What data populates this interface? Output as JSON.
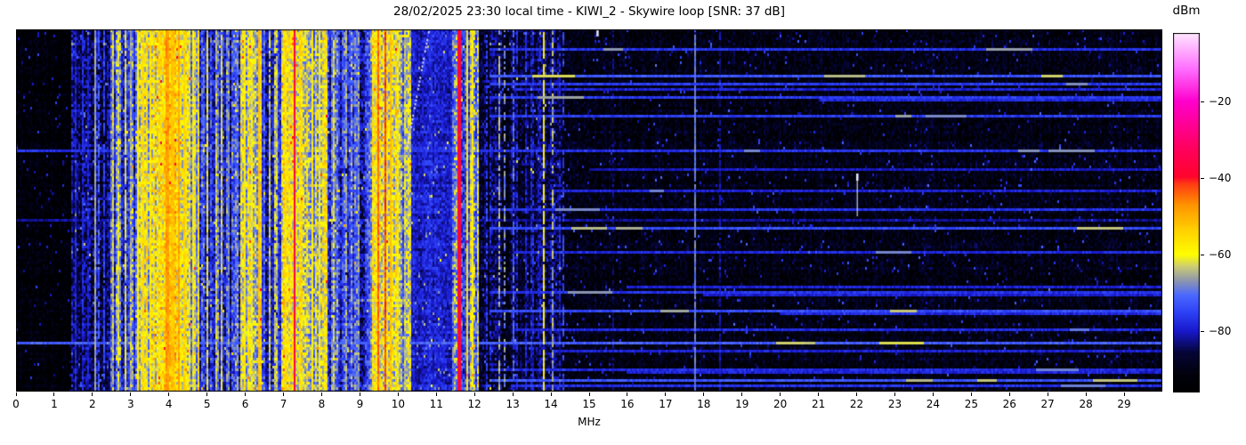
{
  "chart_data": {
    "type": "heatmap",
    "subtype": "radio-spectrogram-waterfall",
    "title": "28/02/2025 23:30 local time - KIWI_2 - Skywire loop [SNR: 37 dB]",
    "station": "KIWI_2",
    "antenna": "Skywire loop",
    "snr_db": 37,
    "timestamp_local": "28/02/2025 23:30",
    "xlabel": "MHz",
    "x_range": [
      0,
      30
    ],
    "x_ticks": [
      0,
      1,
      2,
      3,
      4,
      5,
      6,
      7,
      8,
      9,
      10,
      11,
      12,
      13,
      14,
      15,
      16,
      17,
      18,
      19,
      20,
      21,
      22,
      23,
      24,
      25,
      26,
      27,
      28,
      29
    ],
    "colorbar_label": "dBm",
    "color_range": [
      -96,
      -2
    ],
    "colorbar_ticks": [
      {
        "value": -20,
        "label": "−20"
      },
      {
        "value": -40,
        "label": "−40"
      },
      {
        "value": -60,
        "label": "−60"
      },
      {
        "value": -80,
        "label": "−80"
      }
    ],
    "colormap_stops": [
      [
        0.0,
        0,
        0,
        0
      ],
      [
        0.05,
        2,
        2,
        14
      ],
      [
        0.11,
        5,
        5,
        55
      ],
      [
        0.17,
        25,
        25,
        205
      ],
      [
        0.22,
        45,
        65,
        245
      ],
      [
        0.27,
        75,
        105,
        255
      ],
      [
        0.31,
        140,
        150,
        175
      ],
      [
        0.35,
        205,
        205,
        115
      ],
      [
        0.383,
        255,
        255,
        0
      ],
      [
        0.45,
        255,
        210,
        0
      ],
      [
        0.52,
        255,
        150,
        0
      ],
      [
        0.58,
        255,
        60,
        20
      ],
      [
        0.6,
        255,
        5,
        45
      ],
      [
        0.68,
        255,
        0,
        95
      ],
      [
        0.81,
        255,
        0,
        205
      ],
      [
        0.9,
        255,
        110,
        255
      ],
      [
        1.0,
        255,
        230,
        255
      ]
    ],
    "bands": [
      [
        0.0,
        1.45,
        -93,
        2,
        4
      ],
      [
        1.45,
        2.45,
        -84,
        5,
        6
      ],
      [
        2.45,
        3.15,
        -74,
        10,
        7
      ],
      [
        3.15,
        3.7,
        -62,
        9,
        7
      ],
      [
        3.7,
        4.45,
        -57,
        8,
        7
      ],
      [
        4.45,
        4.8,
        -65,
        9,
        7
      ],
      [
        4.8,
        5.85,
        -76,
        10,
        7
      ],
      [
        5.85,
        6.45,
        -62,
        8,
        7
      ],
      [
        6.45,
        6.95,
        -78,
        8,
        6
      ],
      [
        6.95,
        7.6,
        -60,
        8,
        7
      ],
      [
        7.6,
        8.15,
        -63,
        9,
        7
      ],
      [
        8.15,
        9.3,
        -76,
        10,
        7
      ],
      [
        9.3,
        10.1,
        -61,
        8,
        7
      ],
      [
        10.1,
        10.35,
        -68,
        9,
        7
      ],
      [
        10.35,
        11.4,
        -79,
        2.5,
        4
      ],
      [
        11.4,
        12.1,
        -68,
        11,
        8
      ],
      [
        12.1,
        12.55,
        -86,
        5,
        6
      ],
      [
        12.55,
        14.25,
        -86,
        7,
        6
      ],
      [
        14.25,
        30.0,
        -91,
        2.5,
        5
      ]
    ],
    "stripes": [
      [
        1.55,
        0.03,
        -79,
        3,
        0.9
      ],
      [
        1.72,
        0.03,
        -78,
        3,
        0.9
      ],
      [
        1.88,
        0.03,
        -79,
        3,
        0.9
      ],
      [
        2.05,
        0.025,
        -66,
        2,
        1.0
      ],
      [
        2.18,
        0.03,
        -72,
        4,
        0.7
      ],
      [
        2.32,
        0.04,
        -75,
        4,
        0.8
      ],
      [
        2.52,
        0.05,
        -63,
        4,
        0.9
      ],
      [
        2.68,
        0.04,
        -62,
        4,
        0.9
      ],
      [
        2.85,
        0.05,
        -61,
        4,
        0.9
      ],
      [
        3.0,
        0.04,
        -64,
        4,
        0.9
      ],
      [
        3.21,
        0.05,
        -58,
        3,
        1.0
      ],
      [
        3.35,
        0.05,
        -55,
        3,
        1.0
      ],
      [
        3.52,
        0.04,
        -57,
        3,
        1.0
      ],
      [
        3.95,
        0.09,
        -48,
        3,
        1.0
      ],
      [
        4.1,
        0.05,
        -52,
        3,
        1.0
      ],
      [
        4.25,
        0.06,
        -49,
        3,
        1.0
      ],
      [
        4.42,
        0.05,
        -54,
        3,
        1.0
      ],
      [
        4.62,
        0.04,
        -60,
        4,
        1.0
      ],
      [
        5.02,
        0.05,
        -62,
        4,
        0.95
      ],
      [
        5.22,
        0.04,
        -64,
        4,
        0.9
      ],
      [
        5.4,
        0.04,
        -63,
        4,
        0.9
      ],
      [
        5.58,
        0.03,
        -68,
        4,
        0.9
      ],
      [
        6.0,
        0.05,
        -58,
        4,
        1.0
      ],
      [
        6.18,
        0.04,
        -60,
        4,
        1.0
      ],
      [
        6.38,
        0.05,
        -52,
        3,
        1.0
      ],
      [
        6.62,
        0.04,
        -64,
        4,
        0.9
      ],
      [
        6.8,
        0.05,
        -63,
        4,
        0.9
      ],
      [
        7.05,
        0.05,
        -56,
        4,
        1.0
      ],
      [
        7.28,
        0.07,
        -37,
        3,
        1.0
      ],
      [
        7.45,
        0.04,
        -55,
        4,
        1.0
      ],
      [
        7.75,
        0.04,
        -58,
        4,
        1.0
      ],
      [
        7.95,
        0.05,
        -59,
        4,
        1.0
      ],
      [
        8.33,
        0.05,
        -63,
        4,
        0.9
      ],
      [
        8.62,
        0.04,
        -66,
        4,
        0.85
      ],
      [
        8.97,
        0.04,
        -67,
        4,
        0.8
      ],
      [
        9.48,
        0.05,
        -44,
        3,
        1.0
      ],
      [
        9.65,
        0.05,
        -42,
        3,
        1.0
      ],
      [
        9.82,
        0.04,
        -52,
        3,
        1.0
      ],
      [
        10.0,
        0.05,
        -60,
        4,
        0.95
      ],
      [
        10.17,
        0.04,
        -63,
        4,
        0.9
      ],
      [
        11.6,
        0.055,
        -38,
        2,
        1.0
      ],
      [
        11.8,
        0.05,
        -57,
        4,
        0.95
      ],
      [
        11.95,
        0.06,
        -59,
        4,
        0.95
      ],
      [
        12.3,
        0.03,
        -76,
        4,
        0.6
      ],
      [
        12.65,
        0.04,
        -66,
        4,
        0.65
      ],
      [
        12.78,
        0.04,
        -68,
        4,
        0.6
      ],
      [
        13.0,
        0.03,
        -71,
        4,
        0.55
      ],
      [
        13.35,
        0.03,
        -78,
        4,
        0.5
      ],
      [
        13.8,
        0.05,
        -59,
        3,
        0.85
      ],
      [
        14.05,
        0.04,
        -66,
        4,
        0.6
      ],
      [
        14.3,
        0.04,
        -75,
        4,
        0.55
      ],
      [
        15.62,
        0.03,
        -85,
        4,
        0.6
      ],
      [
        17.75,
        0.03,
        -69,
        2,
        0.95
      ],
      [
        18.4,
        0.03,
        -82,
        3,
        0.8
      ],
      [
        21.05,
        0.03,
        -86,
        3,
        0.7
      ]
    ],
    "streaks": [
      [
        0.049,
        12.4,
        30,
        -77,
        2
      ],
      [
        0.128,
        12.4,
        30,
        -73,
        3
      ],
      [
        0.145,
        12.4,
        30,
        -76,
        1
      ],
      [
        0.16,
        13.0,
        30,
        -79,
        0
      ],
      [
        0.184,
        12.4,
        30,
        -76,
        1
      ],
      [
        0.194,
        21.0,
        30,
        -78,
        0
      ],
      [
        0.238,
        12.4,
        30,
        -76,
        2
      ],
      [
        0.329,
        0.0,
        30,
        -77,
        3
      ],
      [
        0.386,
        15.0,
        30,
        -80,
        0
      ],
      [
        0.44,
        14.0,
        30,
        -79,
        1
      ],
      [
        0.496,
        12.4,
        30,
        -77,
        1
      ],
      [
        0.521,
        0.0,
        30,
        -82,
        0
      ],
      [
        0.546,
        12.4,
        30,
        -74,
        3
      ],
      [
        0.614,
        13.0,
        30,
        -78,
        1
      ],
      [
        0.705,
        16.0,
        30,
        -79,
        0
      ],
      [
        0.72,
        12.4,
        30,
        -77,
        1
      ],
      [
        0.732,
        18.0,
        30,
        -79,
        0
      ],
      [
        0.771,
        12.4,
        30,
        -74,
        2
      ],
      [
        0.781,
        20.0,
        30,
        -78,
        0
      ],
      [
        0.823,
        13.0,
        30,
        -78,
        1
      ],
      [
        0.86,
        0.0,
        30,
        -72,
        4
      ],
      [
        0.882,
        14.0,
        30,
        -79,
        0
      ],
      [
        0.934,
        12.4,
        30,
        -78,
        1
      ],
      [
        0.944,
        16.0,
        30,
        -79,
        0
      ],
      [
        0.966,
        12.4,
        30,
        -73,
        3
      ],
      [
        0.978,
        13.0,
        30,
        -77,
        1
      ]
    ],
    "marks": {
      "chirp_sweep": {
        "f0_mhz": 10.22,
        "t0": 0.319,
        "f1_mhz": 10.78,
        "t1": 0.005
      },
      "top_blip": {
        "f_mhz": 15.19,
        "t0": 0.0,
        "t1": 0.012
      },
      "vertical_dash": {
        "f_mhz": 22.0,
        "t0": 0.398,
        "t1": 0.516
      }
    },
    "noise": {
      "spike_prob": 0.025,
      "spike_db_min": 8,
      "spike_db_max": 16,
      "row_wobble_db": 1.5
    },
    "seed": 42,
    "legend_position": "right-colorbar",
    "grid": false
  }
}
